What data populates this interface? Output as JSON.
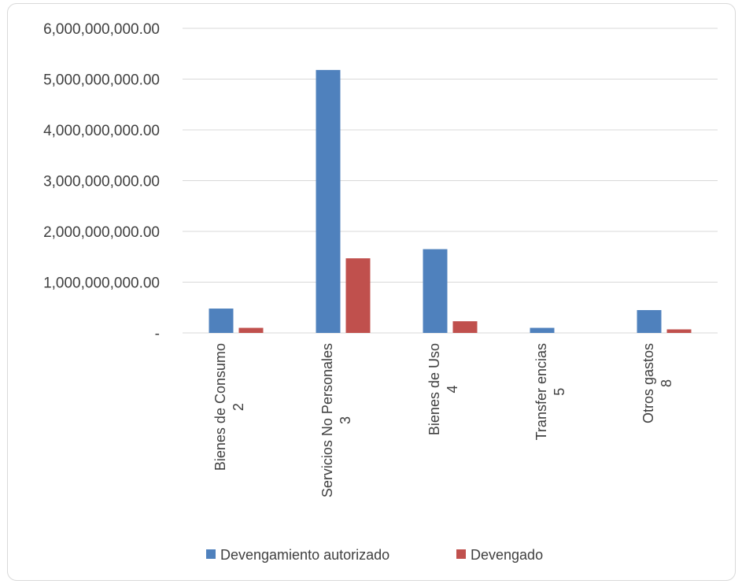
{
  "chart_data": {
    "type": "bar",
    "title": "",
    "xlabel": "",
    "ylabel": "",
    "categories": [
      [
        "Bienes de Consumo",
        "2"
      ],
      [
        "Servicios No Personales",
        "3"
      ],
      [
        "Bienes de Uso",
        "4"
      ],
      [
        "Transfer encias",
        "5"
      ],
      [
        "Otros gastos",
        "8"
      ]
    ],
    "series": [
      {
        "name": "Devengamiento autorizado",
        "color": "#4f81bd",
        "values": [
          480000000,
          5180000000,
          1650000000,
          100000000,
          450000000
        ]
      },
      {
        "name": "Devengado",
        "color": "#c0504d",
        "values": [
          100000000,
          1470000000,
          230000000,
          0,
          70000000
        ]
      }
    ],
    "ylim": [
      0,
      6000000000
    ],
    "yticks": [
      {
        "value": 0,
        "label": "-"
      },
      {
        "value": 1000000000,
        "label": "1,000,000,000.00"
      },
      {
        "value": 2000000000,
        "label": "2,000,000,000.00"
      },
      {
        "value": 3000000000,
        "label": "3,000,000,000.00"
      },
      {
        "value": 4000000000,
        "label": "4,000,000,000.00"
      },
      {
        "value": 5000000000,
        "label": "5,000,000,000.00"
      },
      {
        "value": 6000000000,
        "label": "6,000,000,000.00"
      }
    ],
    "grid": true,
    "legend_position": "bottom"
  }
}
